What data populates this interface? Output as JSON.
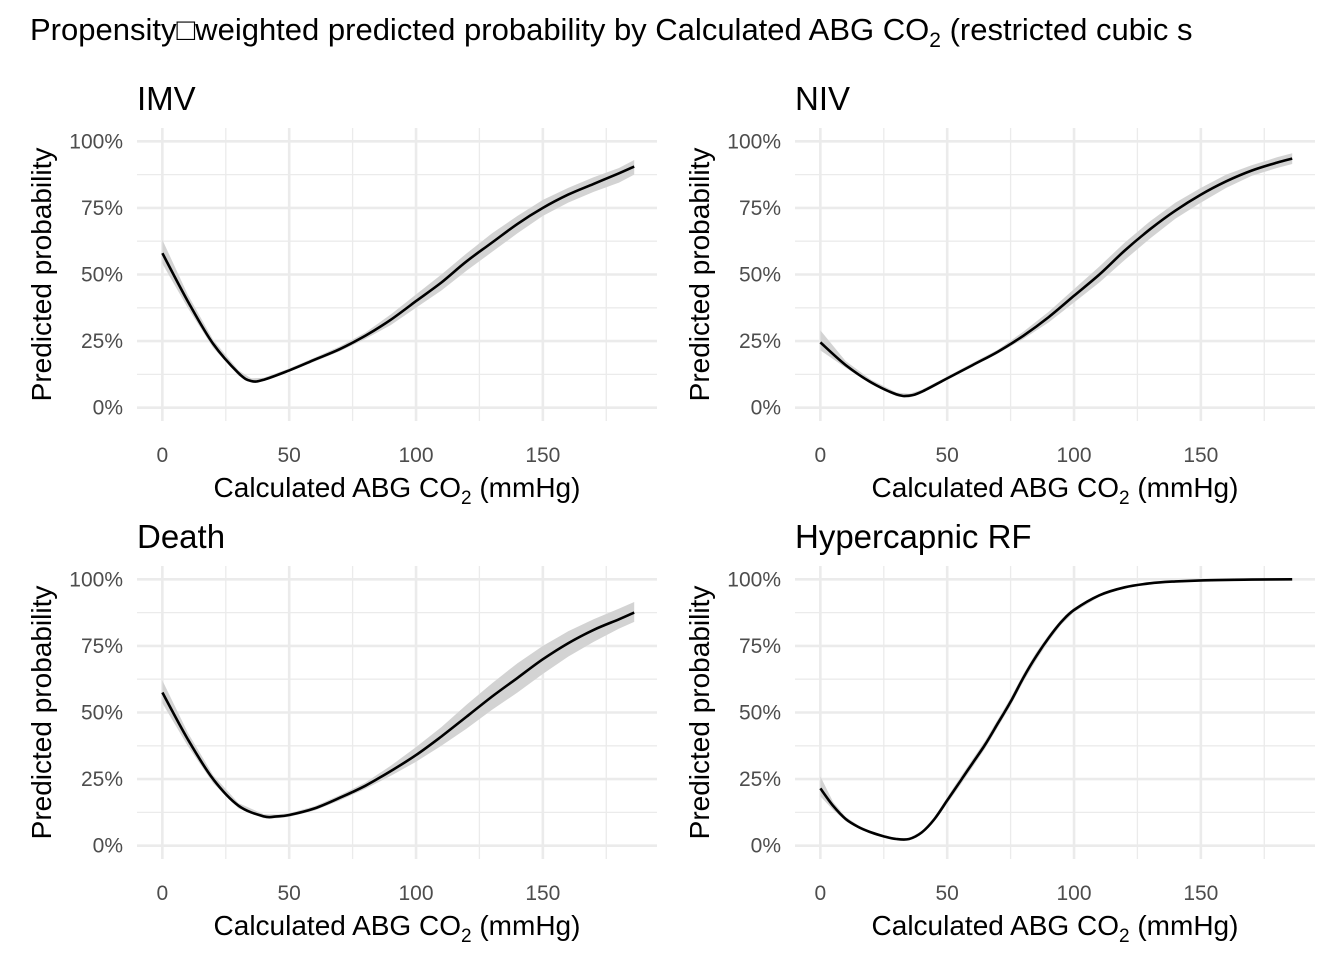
{
  "title": "Propensity□weighted predicted probability by Calculated ABG CO",
  "title_sub": "2",
  "title_tail": " (restricted cubic s",
  "colors": {
    "line": "#000000",
    "ribbon": "#d3d3d3",
    "grid": "#ebebeb",
    "tick_text": "#4d4d4d"
  },
  "chart_data": [
    {
      "type": "line",
      "title": "IMV",
      "xlabel": "Calculated ABG CO",
      "xlabel_sub": "2",
      "xlabel_tail": " (mmHg)",
      "ylabel": "Predicted probability",
      "xlim": [
        -10,
        195
      ],
      "ylim": [
        -5,
        105
      ],
      "xticks": [
        0,
        50,
        100,
        150
      ],
      "xtick_labels": [
        "0",
        "50",
        "100",
        "150"
      ],
      "yticks": [
        0,
        25,
        50,
        75,
        100
      ],
      "ytick_labels": [
        "0%",
        "25%",
        "50%",
        "75%",
        "100%"
      ],
      "grid": true,
      "x": [
        0,
        10,
        20,
        30,
        35,
        40,
        50,
        60,
        70,
        80,
        90,
        100,
        110,
        120,
        130,
        140,
        150,
        160,
        170,
        180,
        186
      ],
      "y": [
        58,
        40,
        24,
        13,
        10,
        10.5,
        14,
        18,
        22,
        27,
        33,
        40,
        47,
        55,
        62,
        69,
        75,
        80,
        84,
        88,
        90.5
      ],
      "lower": [
        54,
        37.5,
        22.5,
        12,
        9.5,
        10,
        13.5,
        17.3,
        21.2,
        25.8,
        31,
        37.5,
        44,
        51.5,
        58.5,
        65.5,
        72,
        77,
        81,
        84.5,
        87.5
      ],
      "upper": [
        63,
        42.5,
        25.5,
        14,
        11,
        11.2,
        14.7,
        18.8,
        23,
        28.2,
        35,
        42.5,
        50,
        58,
        65.5,
        72,
        78,
        82.5,
        86.5,
        90,
        93
      ]
    },
    {
      "type": "line",
      "title": "NIV",
      "xlabel": "Calculated ABG CO",
      "xlabel_sub": "2",
      "xlabel_tail": " (mmHg)",
      "ylabel": "Predicted probability",
      "xlim": [
        -10,
        195
      ],
      "ylim": [
        -5,
        105
      ],
      "xticks": [
        0,
        50,
        100,
        150
      ],
      "xtick_labels": [
        "0",
        "50",
        "100",
        "150"
      ],
      "yticks": [
        0,
        25,
        50,
        75,
        100
      ],
      "ytick_labels": [
        "0%",
        "25%",
        "50%",
        "75%",
        "100%"
      ],
      "grid": true,
      "x": [
        0,
        10,
        20,
        30,
        35,
        40,
        50,
        60,
        70,
        80,
        90,
        100,
        110,
        120,
        130,
        140,
        150,
        160,
        170,
        180,
        186
      ],
      "y": [
        24.5,
        16,
        9.5,
        5,
        4.5,
        6,
        11,
        16,
        21,
        27,
        34,
        42,
        50,
        59,
        67,
        74,
        80,
        85,
        89,
        92,
        93.5
      ],
      "lower": [
        21.5,
        15,
        8.8,
        4.3,
        3.8,
        5.4,
        10.4,
        15.4,
        20.3,
        25.8,
        32,
        39.5,
        47,
        55.5,
        63.5,
        71,
        77,
        82.5,
        87,
        90,
        91.5
      ],
      "upper": [
        29,
        17.5,
        10.5,
        5.7,
        5.2,
        6.7,
        11.7,
        16.8,
        21.8,
        28.5,
        36,
        44.5,
        53,
        62,
        70,
        77,
        82.5,
        87.5,
        91,
        94,
        95.5
      ]
    },
    {
      "type": "line",
      "title": "Death",
      "xlabel": "Calculated ABG CO",
      "xlabel_sub": "2",
      "xlabel_tail": " (mmHg)",
      "ylabel": "Predicted probability",
      "xlim": [
        -10,
        195
      ],
      "ylim": [
        -5,
        105
      ],
      "xticks": [
        0,
        50,
        100,
        150
      ],
      "xtick_labels": [
        "0",
        "50",
        "100",
        "150"
      ],
      "yticks": [
        0,
        25,
        50,
        75,
        100
      ],
      "ytick_labels": [
        "0%",
        "25%",
        "50%",
        "75%",
        "100%"
      ],
      "grid": true,
      "x": [
        0,
        10,
        20,
        30,
        40,
        45,
        50,
        60,
        70,
        80,
        90,
        100,
        110,
        120,
        130,
        140,
        150,
        160,
        170,
        180,
        186
      ],
      "y": [
        57.5,
        40,
        25,
        15,
        11,
        11,
        11.5,
        14,
        18,
        22.5,
        28,
        34,
        41,
        48.5,
        56,
        63,
        70,
        76,
        81,
        85,
        87.5
      ],
      "lower": [
        53.5,
        37.5,
        23.5,
        14,
        10.3,
        10.3,
        10.8,
        13.2,
        17,
        21.3,
        26.2,
        31.5,
        37.5,
        44,
        51,
        57.5,
        64.5,
        71,
        76.5,
        81.5,
        84
      ],
      "upper": [
        62,
        42.5,
        26.5,
        16,
        11.8,
        11.7,
        12.2,
        14.8,
        19,
        23.7,
        30,
        37,
        44.5,
        53,
        61,
        68.5,
        75,
        80.5,
        85,
        89,
        91.5
      ]
    },
    {
      "type": "line",
      "title": "Hypercapnic RF",
      "xlabel": "Calculated ABG CO",
      "xlabel_sub": "2",
      "xlabel_tail": " (mmHg)",
      "ylabel": "Predicted probability",
      "xlim": [
        -10,
        195
      ],
      "ylim": [
        -5,
        105
      ],
      "xticks": [
        0,
        50,
        100,
        150
      ],
      "xtick_labels": [
        "0",
        "50",
        "100",
        "150"
      ],
      "yticks": [
        0,
        25,
        50,
        75,
        100
      ],
      "ytick_labels": [
        "0%",
        "25%",
        "50%",
        "75%",
        "100%"
      ],
      "grid": true,
      "x": [
        0,
        5,
        10,
        15,
        20,
        25,
        30,
        35,
        40,
        45,
        50,
        55,
        60,
        65,
        70,
        75,
        80,
        85,
        90,
        95,
        100,
        110,
        120,
        130,
        140,
        150,
        160,
        170,
        186
      ],
      "y": [
        21.5,
        15,
        10,
        7,
        5,
        3.5,
        2.5,
        2.5,
        5,
        10,
        17,
        24,
        31,
        38,
        46,
        54,
        63,
        71,
        78,
        84,
        88.5,
        94,
        97,
        98.5,
        99.2,
        99.6,
        99.8,
        99.9,
        100
      ],
      "lower": [
        18.5,
        13.5,
        9.2,
        6.5,
        4.6,
        3.1,
        2.2,
        2.2,
        4.5,
        9.2,
        15.8,
        22.5,
        29.5,
        36.5,
        44.5,
        52.5,
        61.5,
        69.5,
        76.8,
        83,
        87.7,
        93.5,
        96.7,
        98.3,
        99.1,
        99.5,
        99.7,
        99.8,
        99.9
      ],
      "upper": [
        26,
        16.5,
        10.8,
        7.6,
        5.4,
        3.9,
        2.9,
        2.9,
        5.5,
        10.8,
        18.2,
        25.5,
        32.5,
        39.5,
        47.5,
        55.5,
        64.5,
        72.5,
        79.2,
        85,
        89.3,
        94.5,
        97.3,
        98.7,
        99.3,
        99.7,
        99.9,
        100,
        100
      ]
    }
  ]
}
